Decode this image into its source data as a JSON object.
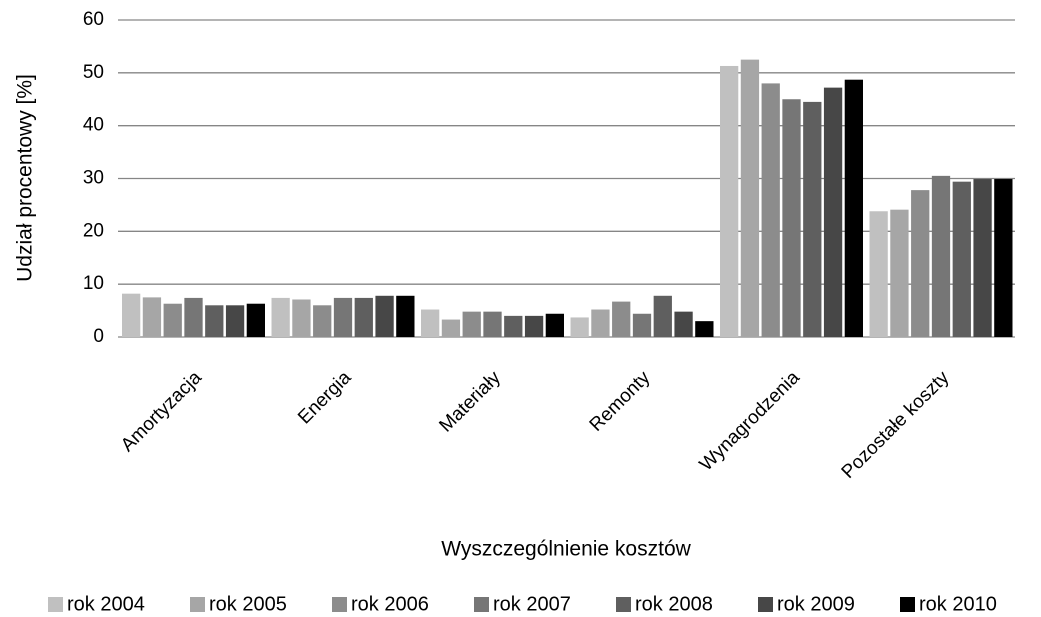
{
  "chart_data": {
    "type": "bar",
    "x_label": "Wyszczególnienie kosztów",
    "y_label": "Udział procentowy [%]",
    "categories": [
      "Amortyzacja",
      "Energia",
      "Materiały",
      "Remonty",
      "Wynagrodzenia",
      "Pozostałe koszty"
    ],
    "series": [
      {
        "name": "rok 2004",
        "color": "#c0c0c0",
        "values": [
          8.2,
          7.4,
          5.2,
          3.7,
          51.3,
          23.8
        ]
      },
      {
        "name": "rok 2005",
        "color": "#a6a6a6",
        "values": [
          7.5,
          7.1,
          3.3,
          5.2,
          52.5,
          24.1
        ]
      },
      {
        "name": "rok 2006",
        "color": "#8c8c8c",
        "values": [
          6.3,
          6.0,
          4.8,
          6.7,
          48.0,
          27.8
        ]
      },
      {
        "name": "rok 2007",
        "color": "#767676",
        "values": [
          7.4,
          7.4,
          4.8,
          4.4,
          45.0,
          30.5
        ]
      },
      {
        "name": "rok 2008",
        "color": "#5f5f5f",
        "values": [
          6.0,
          7.4,
          4.0,
          7.8,
          44.5,
          29.4
        ]
      },
      {
        "name": "rok 2009",
        "color": "#474747",
        "values": [
          6.0,
          7.8,
          4.0,
          4.8,
          47.2,
          29.9
        ]
      },
      {
        "name": "rok 2010",
        "color": "#000000",
        "values": [
          6.3,
          7.8,
          4.4,
          3.0,
          48.7,
          29.9
        ]
      }
    ],
    "ylim": [
      0,
      60
    ],
    "yticks": [
      0,
      10,
      20,
      30,
      40,
      50,
      60
    ],
    "grid": true,
    "legend": "bottom"
  }
}
